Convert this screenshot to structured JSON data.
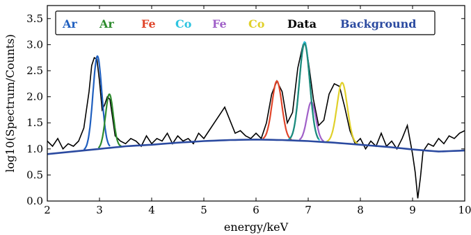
{
  "chart_data": {
    "type": "line",
    "title": "",
    "xlabel": "energy/keV",
    "ylabel": "log10(Spectrum/Counts)",
    "xlim": [
      2,
      10
    ],
    "ylim": [
      0.0,
      3.75
    ],
    "x_ticks": [
      "2",
      "3",
      "4",
      "5",
      "6",
      "7",
      "8",
      "9",
      "10"
    ],
    "y_ticks": [
      "0.0",
      "0.5",
      "1.0",
      "1.5",
      "2.0",
      "2.5",
      "3.0",
      "3.5"
    ],
    "grid": false,
    "legend_position": "top",
    "legend": [
      {
        "label": "Ar",
        "color": "#1f5fbf"
      },
      {
        "label": "Ar",
        "color": "#2e8b2e"
      },
      {
        "label": "Fe",
        "color": "#e0452a"
      },
      {
        "label": "Co",
        "color": "#2ec4e0"
      },
      {
        "label": "Fe",
        "color": "#a060c8"
      },
      {
        "label": "Co",
        "color": "#e0d02a"
      },
      {
        "label": "Data",
        "color": "#000000"
      },
      {
        "label": "Background",
        "color": "#2b4aa0"
      }
    ],
    "series": [
      {
        "name": "Background",
        "color": "#2b4aa0",
        "kind": "background",
        "x": [
          2.0,
          2.5,
          3.0,
          3.5,
          4.0,
          4.5,
          5.0,
          5.5,
          6.0,
          6.5,
          7.0,
          7.5,
          8.0,
          8.5,
          9.0,
          9.5,
          10.0
        ],
        "y": [
          0.9,
          0.95,
          1.0,
          1.05,
          1.08,
          1.12,
          1.15,
          1.17,
          1.18,
          1.17,
          1.15,
          1.12,
          1.08,
          1.04,
          0.99,
          0.95,
          0.97
        ]
      },
      {
        "name": "Ar",
        "color": "#1f5fbf",
        "kind": "peak",
        "center": 2.96,
        "height": 2.78,
        "sigma": 0.085,
        "range": [
          2.7,
          3.2
        ]
      },
      {
        "name": "Ar",
        "color": "#2e8b2e",
        "kind": "peak",
        "center": 3.19,
        "height": 2.05,
        "sigma": 0.075,
        "range": [
          2.98,
          3.42
        ]
      },
      {
        "name": "Fe",
        "color": "#e0452a",
        "kind": "peak",
        "center": 6.4,
        "height": 2.3,
        "sigma": 0.095,
        "range": [
          6.13,
          6.68
        ]
      },
      {
        "name": "Co",
        "color": "#2ec4e0",
        "kind": "peak",
        "center": 6.93,
        "height": 3.05,
        "sigma": 0.1,
        "range": [
          6.62,
          7.22
        ]
      },
      {
        "name": "Fe",
        "color": "#a060c8",
        "kind": "peak",
        "center": 7.06,
        "height": 1.9,
        "sigma": 0.085,
        "range": [
          6.83,
          7.3
        ]
      },
      {
        "name": "Co",
        "color": "#e0d02a",
        "kind": "peak",
        "center": 7.65,
        "height": 2.27,
        "sigma": 0.1,
        "range": [
          7.35,
          7.95
        ]
      },
      {
        "name": "Co",
        "color": "#1f8a7a",
        "kind": "peak",
        "center": 6.93,
        "height": 3.02,
        "sigma": 0.1,
        "range": [
          6.64,
          7.2
        ]
      }
    ],
    "data_series": {
      "name": "Data",
      "color": "#000000",
      "x": [
        2.0,
        2.1,
        2.2,
        2.3,
        2.4,
        2.5,
        2.6,
        2.7,
        2.8,
        2.85,
        2.9,
        2.95,
        3.0,
        3.05,
        3.1,
        3.15,
        3.2,
        3.25,
        3.3,
        3.4,
        3.5,
        3.6,
        3.7,
        3.8,
        3.9,
        4.0,
        4.1,
        4.2,
        4.3,
        4.4,
        4.5,
        4.6,
        4.7,
        4.8,
        4.9,
        5.0,
        5.1,
        5.2,
        5.3,
        5.4,
        5.5,
        5.6,
        5.7,
        5.8,
        5.9,
        6.0,
        6.1,
        6.2,
        6.3,
        6.4,
        6.5,
        6.6,
        6.7,
        6.8,
        6.9,
        6.95,
        7.0,
        7.1,
        7.2,
        7.3,
        7.4,
        7.5,
        7.6,
        7.7,
        7.8,
        7.9,
        8.0,
        8.1,
        8.2,
        8.3,
        8.4,
        8.5,
        8.6,
        8.7,
        8.8,
        8.9,
        9.0,
        9.05,
        9.1,
        9.15,
        9.2,
        9.3,
        9.4,
        9.5,
        9.6,
        9.7,
        9.8,
        9.9,
        10.0
      ],
      "y": [
        1.15,
        1.05,
        1.2,
        1.0,
        1.1,
        1.05,
        1.15,
        1.4,
        2.1,
        2.6,
        2.75,
        2.72,
        2.3,
        1.75,
        1.85,
        2.0,
        1.95,
        1.6,
        1.25,
        1.15,
        1.1,
        1.2,
        1.15,
        1.05,
        1.25,
        1.1,
        1.2,
        1.15,
        1.3,
        1.1,
        1.25,
        1.15,
        1.2,
        1.1,
        1.3,
        1.2,
        1.35,
        1.5,
        1.65,
        1.8,
        1.55,
        1.3,
        1.35,
        1.25,
        1.2,
        1.3,
        1.2,
        1.5,
        2.05,
        2.3,
        2.1,
        1.5,
        1.7,
        2.55,
        3.0,
        3.03,
        2.7,
        1.95,
        1.45,
        1.55,
        2.05,
        2.25,
        2.2,
        1.8,
        1.35,
        1.1,
        1.2,
        1.0,
        1.15,
        1.05,
        1.3,
        1.05,
        1.15,
        1.0,
        1.2,
        1.45,
        0.9,
        0.55,
        0.05,
        0.45,
        0.95,
        1.1,
        1.05,
        1.2,
        1.1,
        1.25,
        1.2,
        1.3,
        1.35
      ]
    }
  }
}
